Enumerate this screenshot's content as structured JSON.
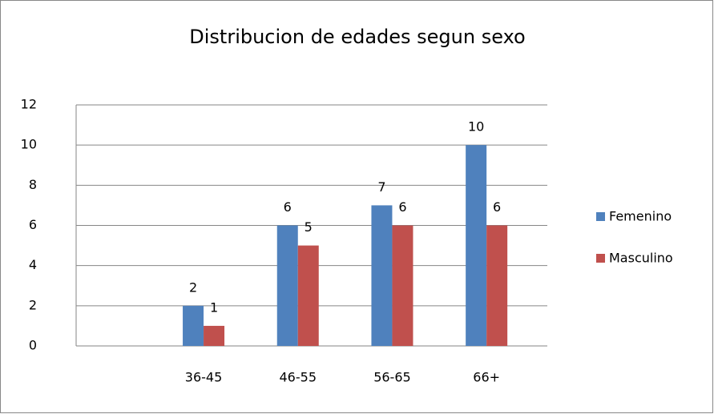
{
  "chart_data": {
    "type": "bar",
    "title": "Distribucion de edades segun  sexo",
    "categories": [
      null,
      "36-45",
      "46-55",
      "56-65",
      "66+"
    ],
    "series": [
      {
        "name": "Femenino",
        "color": "#4f81bd",
        "values": [
          null,
          2,
          6,
          7,
          10
        ]
      },
      {
        "name": "Masculino",
        "color": "#c0504d",
        "values": [
          null,
          1,
          5,
          6,
          6
        ]
      }
    ],
    "ylim": [
      0,
      12
    ],
    "yticks": [
      0,
      2,
      4,
      6,
      8,
      10,
      12
    ],
    "grid": true,
    "legend": "right"
  }
}
